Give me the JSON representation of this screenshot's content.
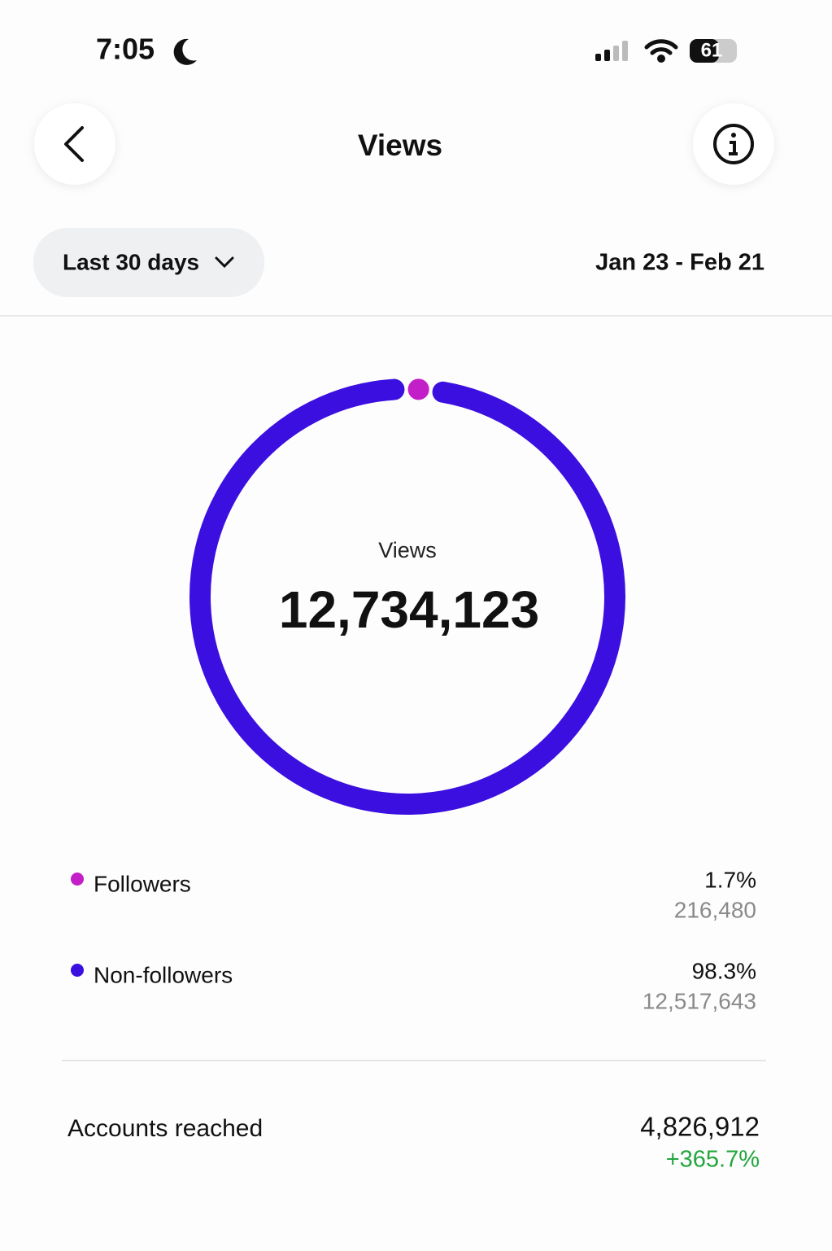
{
  "status_bar": {
    "time": "7:05",
    "battery": "61"
  },
  "header": {
    "title": "Views"
  },
  "filter": {
    "range": "Last 30 days",
    "dates": "Jan 23 - Feb 21"
  },
  "chart_data": {
    "type": "donut",
    "center_label": "Views",
    "center_value": "12,734,123",
    "categories": [
      "Followers",
      "Non-followers"
    ],
    "values": [
      1.7,
      98.3
    ],
    "value_labels": [
      "1.7%",
      "98.3%"
    ],
    "counts": [
      "216,480",
      "12,517,643"
    ],
    "colors": [
      "#c31fc9",
      "#3b0fe0"
    ]
  },
  "summary": {
    "label": "Accounts reached",
    "value": "4,826,912",
    "change": "+365.7%"
  }
}
